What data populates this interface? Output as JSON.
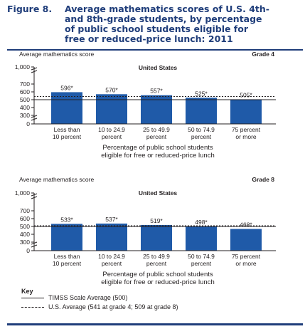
{
  "figure": {
    "title_lines": [
      "Figure 8.",
      "Average mathematics scores of U.S. 4th-",
      "and 8th-grade students, by percentage",
      "of public school students eligible for",
      "free or reduced-price lunch: 2011"
    ]
  },
  "key": {
    "heading": "Key",
    "timss_label": "TIMSS Scale Average (500)",
    "us_label": "U.S. Average (541 at grade 4; 509 at grade 8)"
  },
  "colors": {
    "bar": "#1f5aa8",
    "title": "#1f3d7a",
    "rule": "#1f3d7a",
    "text": "#231f20"
  },
  "chart_data": [
    {
      "type": "bar",
      "title": "United States",
      "grade_label": "Grade 4",
      "ylabel": "Average mathematics score",
      "xlabel_lines": [
        "Percentage of public school students",
        "eligible for free or reduced-price lunch"
      ],
      "categories": [
        [
          "Less than",
          "10 percent"
        ],
        [
          "10 to 24.9",
          "percent"
        ],
        [
          "25 to 49.9",
          "percent"
        ],
        [
          "50 to 74.9",
          "percent"
        ],
        [
          "75 percent",
          "or more"
        ]
      ],
      "values": [
        596,
        570,
        557,
        525,
        505
      ],
      "value_labels": [
        "596*",
        "570*",
        "557*",
        "525*",
        "505*"
      ],
      "yticks": [
        "0",
        "300",
        "400",
        "500",
        "600",
        "700",
        "1,000"
      ],
      "ylim": [
        0,
        1000
      ],
      "axis_break": true,
      "reference_lines": [
        {
          "name": "TIMSS Scale Average",
          "value": 500,
          "style": "solid"
        },
        {
          "name": "U.S. Average",
          "value": 541,
          "style": "dashed"
        }
      ],
      "grid": false
    },
    {
      "type": "bar",
      "title": "United States",
      "grade_label": "Grade 8",
      "ylabel": "Average mathematics score",
      "xlabel_lines": [
        "Percentage of public school students",
        "eligible for free or reduced-price lunch"
      ],
      "categories": [
        [
          "Less than",
          "10 percent"
        ],
        [
          "10 to 24.9",
          "percent"
        ],
        [
          "25 to 49.9",
          "percent"
        ],
        [
          "50 to 74.9",
          "percent"
        ],
        [
          "75 percent",
          "or more"
        ]
      ],
      "values": [
        533,
        537,
        519,
        498,
        468
      ],
      "value_labels": [
        "533*",
        "537*",
        "519*",
        "498*",
        "468*"
      ],
      "yticks": [
        "0",
        "300",
        "400",
        "500",
        "600",
        "700",
        "1,000"
      ],
      "ylim": [
        0,
        1000
      ],
      "axis_break": true,
      "reference_lines": [
        {
          "name": "TIMSS Scale Average",
          "value": 500,
          "style": "solid"
        },
        {
          "name": "U.S. Average",
          "value": 509,
          "style": "dashed"
        }
      ],
      "grid": false
    }
  ]
}
